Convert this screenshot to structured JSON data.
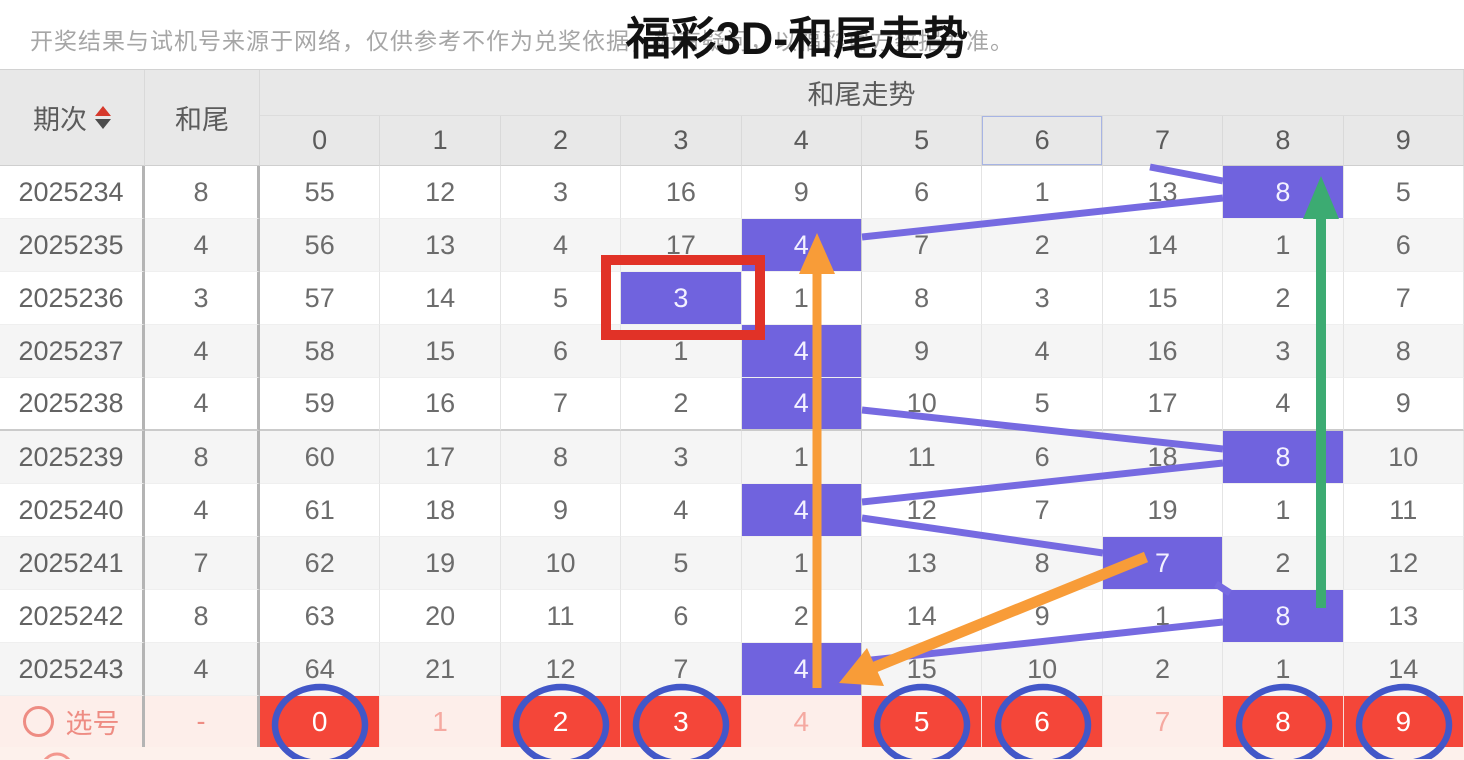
{
  "page": {
    "disclaimer": "开奖结果与试机号来源于网络，仅供参考不作为兑奖依据，如有疑问，以福彩官方数据为准。",
    "title": "福彩3D-和尾走势"
  },
  "table": {
    "col_period": "期次",
    "col_tail": "和尾",
    "group_header": "和尾走势",
    "digit_headers": [
      "0",
      "1",
      "2",
      "3",
      "4",
      "5",
      "6",
      "7",
      "8",
      "9"
    ],
    "rows": [
      {
        "period": "2025234",
        "tail": "8",
        "cells": [
          "55",
          "12",
          "3",
          "16",
          "9",
          "6",
          "1",
          "13",
          "8",
          "5"
        ],
        "highlight": 8
      },
      {
        "period": "2025235",
        "tail": "4",
        "cells": [
          "56",
          "13",
          "4",
          "17",
          "4",
          "7",
          "2",
          "14",
          "1",
          "6"
        ],
        "highlight": 4
      },
      {
        "period": "2025236",
        "tail": "3",
        "cells": [
          "57",
          "14",
          "5",
          "3",
          "1",
          "8",
          "3",
          "15",
          "2",
          "7"
        ],
        "highlight": 3,
        "red_box": true
      },
      {
        "period": "2025237",
        "tail": "4",
        "cells": [
          "58",
          "15",
          "6",
          "1",
          "4",
          "9",
          "4",
          "16",
          "3",
          "8"
        ],
        "highlight": 4
      },
      {
        "period": "2025238",
        "tail": "4",
        "cells": [
          "59",
          "16",
          "7",
          "2",
          "4",
          "10",
          "5",
          "17",
          "4",
          "9"
        ],
        "highlight": 4
      },
      {
        "period": "2025239",
        "tail": "8",
        "cells": [
          "60",
          "17",
          "8",
          "3",
          "1",
          "11",
          "6",
          "18",
          "8",
          "10"
        ],
        "highlight": 8
      },
      {
        "period": "2025240",
        "tail": "4",
        "cells": [
          "61",
          "18",
          "9",
          "4",
          "4",
          "12",
          "7",
          "19",
          "1",
          "11"
        ],
        "highlight": 4
      },
      {
        "period": "2025241",
        "tail": "7",
        "cells": [
          "62",
          "19",
          "10",
          "5",
          "1",
          "13",
          "8",
          "7",
          "2",
          "12"
        ],
        "highlight": 7
      },
      {
        "period": "2025242",
        "tail": "8",
        "cells": [
          "63",
          "20",
          "11",
          "6",
          "2",
          "14",
          "9",
          "1",
          "8",
          "13"
        ],
        "highlight": 8
      },
      {
        "period": "2025243",
        "tail": "4",
        "cells": [
          "64",
          "21",
          "12",
          "7",
          "4",
          "15",
          "10",
          "2",
          "1",
          "14"
        ],
        "highlight": 4
      }
    ],
    "selection_row": {
      "label": "选号",
      "tail": "-",
      "numbers": [
        "0",
        "1",
        "2",
        "3",
        "4",
        "5",
        "6",
        "7",
        "8",
        "9"
      ],
      "selected": [
        0,
        2,
        3,
        5,
        6,
        8,
        9
      ]
    }
  },
  "annotations": {
    "highlight_cell_color": "#7063de",
    "trend_line_color": "#766ae1",
    "red_box": {
      "row": "2025236",
      "digit": "3",
      "color": "#e13227"
    },
    "vertical_orange_arrow": {
      "color": "#f89c38",
      "direction": "up",
      "target_column": "4"
    },
    "diagonal_orange_arrow": {
      "color": "#f89c38",
      "direction": "down-left",
      "from_column": "7",
      "to_column": "4"
    },
    "green_arrow": {
      "color": "#3cab72",
      "direction": "up",
      "target_column": "8"
    },
    "selection_cell_color": "#f44639",
    "selection_circle_color": "#4257c8"
  }
}
